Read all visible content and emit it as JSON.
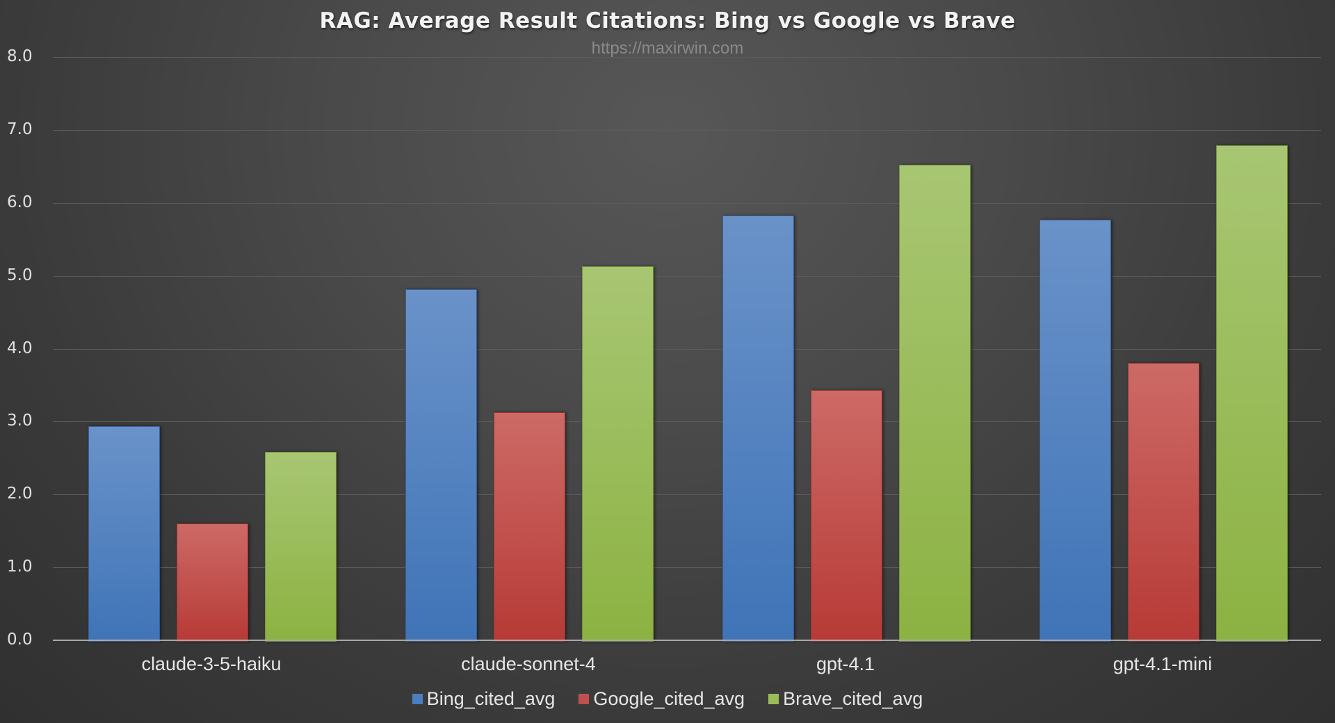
{
  "chart_data": {
    "type": "bar",
    "title": "RAG: Average Result Citations: Bing vs Google vs Brave",
    "subtitle": "https://maxirwin.com",
    "xlabel": "",
    "ylabel": "",
    "ylim": [
      0,
      8
    ],
    "yticks": [
      "0.0",
      "1.0",
      "2.0",
      "3.0",
      "4.0",
      "5.0",
      "6.0",
      "7.0",
      "8.0"
    ],
    "grid": true,
    "legend_position": "bottom",
    "categories": [
      "claude-3-5-haiku",
      "claude-sonnet-4",
      "gpt-4.1",
      "gpt-4.1-mini"
    ],
    "series": [
      {
        "name": "Bing_cited_avg",
        "color": "#4a7ebf",
        "values": [
          2.94,
          4.82,
          5.83,
          5.77
        ]
      },
      {
        "name": "Google_cited_avg",
        "color": "#c0504d",
        "values": [
          1.6,
          3.13,
          3.43,
          3.8
        ]
      },
      {
        "name": "Brave_cited_avg",
        "color": "#9bbb59",
        "values": [
          2.58,
          5.13,
          6.52,
          6.79
        ]
      }
    ]
  }
}
